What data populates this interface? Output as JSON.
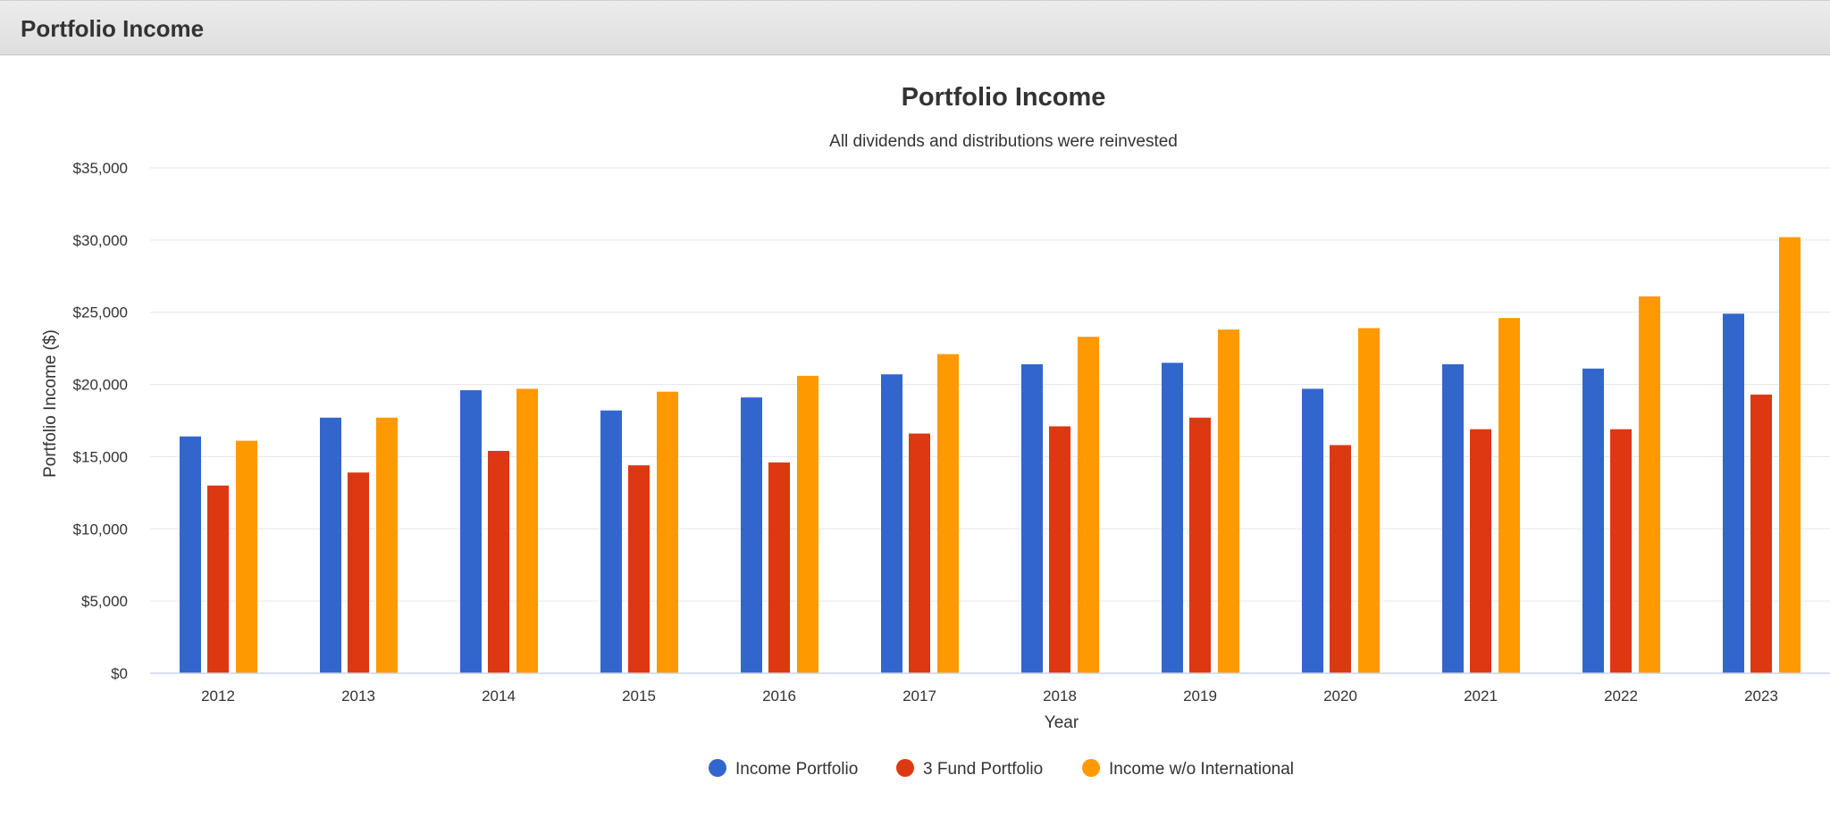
{
  "header": {
    "title": "Portfolio Income"
  },
  "chart_data": {
    "type": "bar",
    "title": "Portfolio Income",
    "subtitle": "All dividends and distributions were reinvested",
    "xlabel": "Year",
    "ylabel": "Portfolio Income ($)",
    "ylim": [
      0,
      35000
    ],
    "yticks": [
      0,
      5000,
      10000,
      15000,
      20000,
      25000,
      30000,
      35000
    ],
    "ytick_labels": [
      "$0",
      "$5,000",
      "$10,000",
      "$15,000",
      "$20,000",
      "$25,000",
      "$30,000",
      "$35,000"
    ],
    "grid": true,
    "legend_position": "bottom-center",
    "categories": [
      "2012",
      "2013",
      "2014",
      "2015",
      "2016",
      "2017",
      "2018",
      "2019",
      "2020",
      "2021",
      "2022",
      "2023"
    ],
    "series": [
      {
        "name": "Income Portfolio",
        "color": "#3366cc",
        "values": [
          16400,
          17700,
          19600,
          18200,
          19100,
          20700,
          21400,
          21500,
          19700,
          21400,
          21100,
          24900
        ]
      },
      {
        "name": "3 Fund Portfolio",
        "color": "#dc3912",
        "values": [
          13000,
          13900,
          15400,
          14400,
          14600,
          16600,
          17100,
          17700,
          15800,
          16900,
          16900,
          19300
        ]
      },
      {
        "name": "Income w/o International",
        "color": "#ff9900",
        "values": [
          16100,
          17700,
          19700,
          19500,
          20600,
          22100,
          23300,
          23800,
          23900,
          24600,
          26100,
          30200
        ]
      }
    ]
  }
}
